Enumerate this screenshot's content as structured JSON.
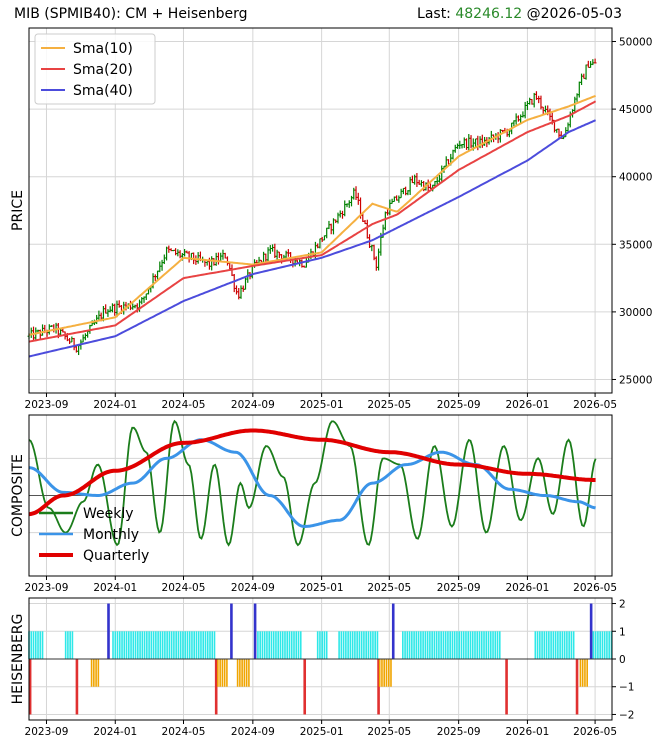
{
  "header": {
    "title": "MIB (SPMIB40): CM + Heisenberg",
    "last_label": "Last:",
    "last_value": "48246.12",
    "last_date": "@2026-05-03",
    "last_color": "#2a8a2a"
  },
  "chart_data": [
    {
      "type": "ohlc-line",
      "panel": "price",
      "ylabel": "PRICE",
      "ylim": [
        24000,
        51000
      ],
      "yticks": [
        25000,
        30000,
        35000,
        40000,
        45000,
        50000
      ],
      "ytick_labels": [
        "25000",
        "30000",
        "35000",
        "40000",
        "45000",
        "50000"
      ],
      "x_range": [
        "2023-08-01",
        "2026-05-31"
      ],
      "xticks": [
        "2023-09",
        "2024-01",
        "2024-05",
        "2024-09",
        "2025-01",
        "2025-05",
        "2025-09",
        "2026-01",
        "2026-05"
      ],
      "grid": true,
      "legend_position": "top-left",
      "bar_colors": {
        "up": "#008000",
        "down": "#cc0000"
      },
      "price_anchors": [
        [
          "2023-08-01",
          28200
        ],
        [
          "2023-09-15",
          28800
        ],
        [
          "2023-10-25",
          27400
        ],
        [
          "2023-12-15",
          30200
        ],
        [
          "2024-02-15",
          30600
        ],
        [
          "2024-04-01",
          34500
        ],
        [
          "2024-05-15",
          34000
        ],
        [
          "2024-06-15",
          33500
        ],
        [
          "2024-07-15",
          34200
        ],
        [
          "2024-08-05",
          31200
        ],
        [
          "2024-09-01",
          33200
        ],
        [
          "2024-10-01",
          34500
        ],
        [
          "2024-12-01",
          33600
        ],
        [
          "2025-01-15",
          36200
        ],
        [
          "2025-03-01",
          38800
        ],
        [
          "2025-04-08",
          33500
        ],
        [
          "2025-04-25",
          37500
        ],
        [
          "2025-06-15",
          39800
        ],
        [
          "2025-07-15",
          39000
        ],
        [
          "2025-09-01",
          42500
        ],
        [
          "2025-10-15",
          42500
        ],
        [
          "2025-12-01",
          43500
        ],
        [
          "2026-01-15",
          46000
        ],
        [
          "2026-03-05",
          42800
        ],
        [
          "2026-04-01",
          46500
        ],
        [
          "2026-04-20",
          48500
        ],
        [
          "2026-05-03",
          48246
        ]
      ],
      "series": [
        {
          "name": "Sma(10)",
          "color": "#f5b041",
          "values": [
            [
              "2023-08-01",
              28300
            ],
            [
              "2024-01-01",
              29600
            ],
            [
              "2024-05-01",
              34000
            ],
            [
              "2024-09-01",
              33500
            ],
            [
              "2025-01-01",
              34400
            ],
            [
              "2025-04-01",
              38000
            ],
            [
              "2025-05-15",
              37400
            ],
            [
              "2025-09-01",
              41500
            ],
            [
              "2026-01-01",
              44200
            ],
            [
              "2026-03-15",
              45200
            ],
            [
              "2026-05-03",
              46000
            ]
          ]
        },
        {
          "name": "Sma(20)",
          "color": "#e84343",
          "values": [
            [
              "2023-08-01",
              27800
            ],
            [
              "2024-01-01",
              29000
            ],
            [
              "2024-05-01",
              32500
            ],
            [
              "2024-09-01",
              33400
            ],
            [
              "2025-01-01",
              34200
            ],
            [
              "2025-04-01",
              36500
            ],
            [
              "2025-05-15",
              37200
            ],
            [
              "2025-09-01",
              40500
            ],
            [
              "2026-01-01",
              43300
            ],
            [
              "2026-03-15",
              44500
            ],
            [
              "2026-05-03",
              45600
            ]
          ]
        },
        {
          "name": "Sma(40)",
          "color": "#4c4cdc",
          "values": [
            [
              "2023-08-01",
              26700
            ],
            [
              "2024-01-01",
              28200
            ],
            [
              "2024-05-01",
              30800
            ],
            [
              "2024-09-01",
              32800
            ],
            [
              "2025-01-01",
              34000
            ],
            [
              "2025-04-01",
              35300
            ],
            [
              "2025-09-01",
              38500
            ],
            [
              "2026-01-01",
              41200
            ],
            [
              "2026-03-15",
              43300
            ],
            [
              "2026-05-03",
              44200
            ]
          ]
        }
      ]
    },
    {
      "type": "line",
      "panel": "composite",
      "ylabel": "COMPOSITE",
      "ylim": [
        -1.3,
        1.3
      ],
      "x_range": [
        "2023-08-01",
        "2026-05-31"
      ],
      "xticks": [
        "2023-09",
        "2024-01",
        "2024-05",
        "2024-09",
        "2025-01",
        "2025-05",
        "2025-09",
        "2026-01",
        "2026-05"
      ],
      "grid": true,
      "legend_position": "bottom-left",
      "series": [
        {
          "name": "Weekly",
          "color": "#1b7d1b",
          "values": [
            [
              "2023-08-01",
              0.9
            ],
            [
              "2023-09-05",
              -0.2
            ],
            [
              "2023-10-05",
              -0.6
            ],
            [
              "2023-11-05",
              -0.1
            ],
            [
              "2023-12-01",
              0.5
            ],
            [
              "2024-01-05",
              -0.8
            ],
            [
              "2024-02-01",
              1.1
            ],
            [
              "2024-02-25",
              0.7
            ],
            [
              "2024-03-20",
              -0.6
            ],
            [
              "2024-04-15",
              1.2
            ],
            [
              "2024-05-10",
              0.5
            ],
            [
              "2024-06-01",
              -0.7
            ],
            [
              "2024-06-25",
              0.5
            ],
            [
              "2024-07-20",
              -0.8
            ],
            [
              "2024-08-10",
              0.2
            ],
            [
              "2024-08-25",
              -0.2
            ],
            [
              "2024-09-25",
              0.8
            ],
            [
              "2024-10-25",
              0.3
            ],
            [
              "2024-11-20",
              -0.8
            ],
            [
              "2024-12-20",
              0.2
            ],
            [
              "2025-01-20",
              1.2
            ],
            [
              "2025-02-20",
              0.8
            ],
            [
              "2025-03-25",
              -0.8
            ],
            [
              "2025-04-20",
              0.6
            ],
            [
              "2025-05-20",
              0.5
            ],
            [
              "2025-06-20",
              -0.7
            ],
            [
              "2025-07-20",
              0.8
            ],
            [
              "2025-08-20",
              -0.5
            ],
            [
              "2025-09-20",
              0.9
            ],
            [
              "2025-10-20",
              -0.6
            ],
            [
              "2025-11-20",
              0.8
            ],
            [
              "2025-12-20",
              -0.4
            ],
            [
              "2026-01-20",
              0.6
            ],
            [
              "2026-02-15",
              -0.3
            ],
            [
              "2026-03-15",
              0.9
            ],
            [
              "2026-04-10",
              -0.5
            ],
            [
              "2026-05-03",
              0.6
            ]
          ]
        },
        {
          "name": "Monthly",
          "color": "#3b94e8",
          "values": [
            [
              "2023-08-01",
              0.45
            ],
            [
              "2023-10-01",
              0.05
            ],
            [
              "2023-12-01",
              0.0
            ],
            [
              "2024-02-01",
              0.2
            ],
            [
              "2024-04-01",
              0.6
            ],
            [
              "2024-06-01",
              0.9
            ],
            [
              "2024-08-01",
              0.7
            ],
            [
              "2024-10-01",
              0.0
            ],
            [
              "2024-12-01",
              -0.5
            ],
            [
              "2025-02-01",
              -0.4
            ],
            [
              "2025-04-01",
              0.2
            ],
            [
              "2025-06-01",
              0.5
            ],
            [
              "2025-08-01",
              0.7
            ],
            [
              "2025-10-01",
              0.5
            ],
            [
              "2025-12-01",
              0.1
            ],
            [
              "2026-02-01",
              0.0
            ],
            [
              "2026-04-01",
              -0.1
            ],
            [
              "2026-05-03",
              -0.2
            ]
          ]
        },
        {
          "name": "Quarterly",
          "color": "#e00000",
          "values": [
            [
              "2023-08-01",
              -0.3
            ],
            [
              "2023-10-01",
              0.0
            ],
            [
              "2024-01-01",
              0.4
            ],
            [
              "2024-05-01",
              0.85
            ],
            [
              "2024-09-01",
              1.05
            ],
            [
              "2025-01-01",
              0.9
            ],
            [
              "2025-05-01",
              0.7
            ],
            [
              "2025-09-01",
              0.5
            ],
            [
              "2026-01-01",
              0.35
            ],
            [
              "2026-05-03",
              0.25
            ]
          ]
        }
      ]
    },
    {
      "type": "bar",
      "panel": "heisenberg",
      "ylabel": "HEISENBERG",
      "ylim": [
        -2.2,
        2.2
      ],
      "yticks": [
        -2,
        -1,
        0,
        1,
        2
      ],
      "ytick_labels": [
        "−2",
        "−1",
        "0",
        "1",
        "2"
      ],
      "x_range": [
        "2023-08-01",
        "2026-05-31"
      ],
      "xticks": [
        "2023-09",
        "2024-01",
        "2024-05",
        "2024-09",
        "2025-01",
        "2025-05",
        "2025-09",
        "2026-01",
        "2026-05"
      ],
      "grid": true,
      "value_colors": {
        "2": "#3333cc",
        "1": "#2ee8e8",
        "-1": "#f0a500",
        "-2": "#e03030"
      },
      "segments": [
        {
          "from": "2023-08-01",
          "to": "2023-08-28",
          "value": 1
        },
        {
          "from": "2023-08-03",
          "to": "2023-08-03",
          "value": -2
        },
        {
          "from": "2023-10-05",
          "to": "2023-10-20",
          "value": 1
        },
        {
          "from": "2023-10-25",
          "to": "2023-10-25",
          "value": -2
        },
        {
          "from": "2023-11-20",
          "to": "2023-12-05",
          "value": -1
        },
        {
          "from": "2023-12-20",
          "to": "2023-12-20",
          "value": 2
        },
        {
          "from": "2023-12-28",
          "to": "2024-06-25",
          "value": 1
        },
        {
          "from": "2024-06-28",
          "to": "2024-06-28",
          "value": -2
        },
        {
          "from": "2024-07-01",
          "to": "2024-07-20",
          "value": -1
        },
        {
          "from": "2024-07-25",
          "to": "2024-07-25",
          "value": 2
        },
        {
          "from": "2024-08-05",
          "to": "2024-08-26",
          "value": -1
        },
        {
          "from": "2024-09-05",
          "to": "2024-09-05",
          "value": 2
        },
        {
          "from": "2024-09-10",
          "to": "2024-11-25",
          "value": 1
        },
        {
          "from": "2024-12-02",
          "to": "2024-12-02",
          "value": -2
        },
        {
          "from": "2024-12-25",
          "to": "2025-01-13",
          "value": 1
        },
        {
          "from": "2025-02-01",
          "to": "2025-04-10",
          "value": 1
        },
        {
          "from": "2025-04-12",
          "to": "2025-04-12",
          "value": -2
        },
        {
          "from": "2025-04-14",
          "to": "2025-05-05",
          "value": -1
        },
        {
          "from": "2025-05-08",
          "to": "2025-05-08",
          "value": 2
        },
        {
          "from": "2025-05-25",
          "to": "2025-11-15",
          "value": 1
        },
        {
          "from": "2025-11-25",
          "to": "2025-11-25",
          "value": -2
        },
        {
          "from": "2026-01-15",
          "to": "2026-03-25",
          "value": 1
        },
        {
          "from": "2026-03-30",
          "to": "2026-03-30",
          "value": -2
        },
        {
          "from": "2026-04-05",
          "to": "2026-04-20",
          "value": -1
        },
        {
          "from": "2026-04-24",
          "to": "2026-04-24",
          "value": 2
        },
        {
          "from": "2026-04-28",
          "to": "2026-05-31",
          "value": 1
        }
      ]
    }
  ]
}
